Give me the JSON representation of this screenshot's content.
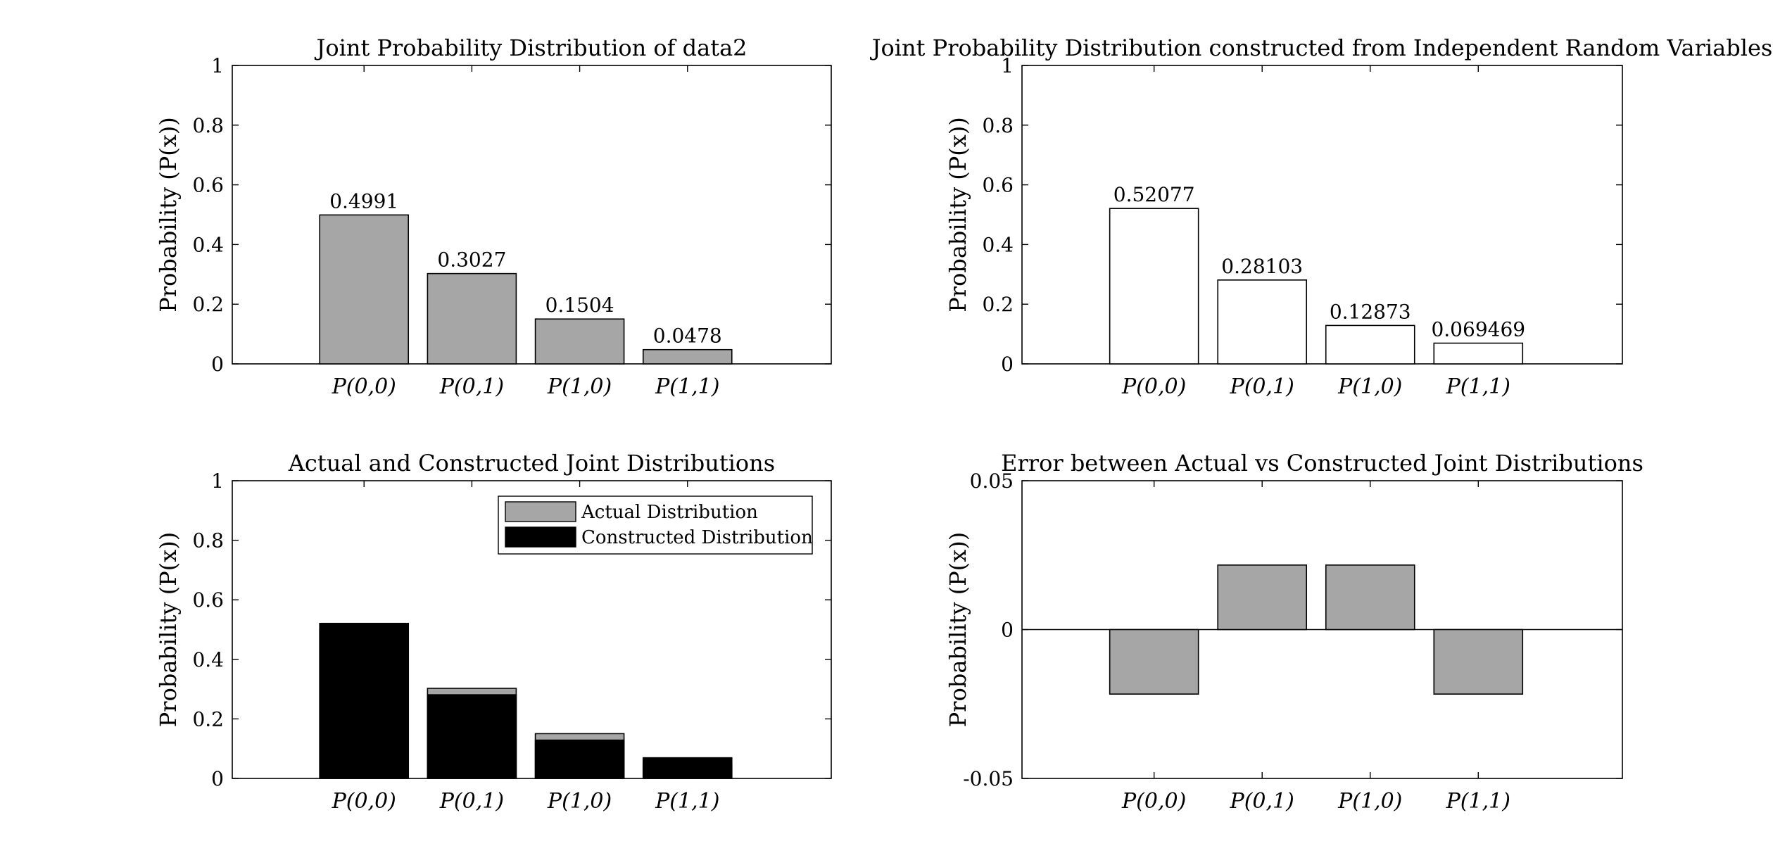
{
  "colors": {
    "bar_gray": "#a6a6a6",
    "bar_black": "#000000",
    "bar_white": "#ffffff",
    "edge": "#000000"
  },
  "chart_data": [
    {
      "type": "bar",
      "title": "Joint Probability Distribution of data2",
      "ylabel": "Probability (P(x))",
      "xlabel": "",
      "categories": [
        "P(0,0)",
        "P(0,1)",
        "P(1,0)",
        "P(1,1)"
      ],
      "values": [
        0.4991,
        0.3027,
        0.1504,
        0.0478
      ],
      "data_labels": [
        "0.4991",
        "0.3027",
        "0.1504",
        "0.0478"
      ],
      "ylim": [
        0,
        1
      ],
      "yticks": [
        0,
        0.2,
        0.4,
        0.6,
        0.8,
        1
      ],
      "ytick_labels": [
        "0",
        "0.2",
        "0.4",
        "0.6",
        "0.8",
        "1"
      ],
      "fill": "gray",
      "grid": false
    },
    {
      "type": "bar",
      "title": "Joint Probability Distribution constructed from Independent Random Variables",
      "ylabel": "Probability (P(x))",
      "xlabel": "",
      "categories": [
        "P(0,0)",
        "P(0,1)",
        "P(1,0)",
        "P(1,1)"
      ],
      "values": [
        0.52077,
        0.28103,
        0.12873,
        0.069469
      ],
      "data_labels": [
        "0.52077",
        "0.28103",
        "0.12873",
        "0.069469"
      ],
      "ylim": [
        0,
        1
      ],
      "yticks": [
        0,
        0.2,
        0.4,
        0.6,
        0.8,
        1
      ],
      "ytick_labels": [
        "0",
        "0.2",
        "0.4",
        "0.6",
        "0.8",
        "1"
      ],
      "fill": "white",
      "grid": false
    },
    {
      "type": "bar",
      "title": "Actual and Constructed Joint Distributions",
      "ylabel": "Probability (P(x))",
      "xlabel": "",
      "categories": [
        "P(0,0)",
        "P(0,1)",
        "P(1,0)",
        "P(1,1)"
      ],
      "series": [
        {
          "name": "Actual Distribution",
          "values": [
            0.4991,
            0.3027,
            0.1504,
            0.0478
          ],
          "color": "gray"
        },
        {
          "name": "Constructed Distribution",
          "values": [
            0.52077,
            0.28103,
            0.12873,
            0.069469
          ],
          "color": "black"
        }
      ],
      "ylim": [
        0,
        1
      ],
      "yticks": [
        0,
        0.2,
        0.4,
        0.6,
        0.8,
        1
      ],
      "ytick_labels": [
        "0",
        "0.2",
        "0.4",
        "0.6",
        "0.8",
        "1"
      ],
      "legend": "top-right",
      "grid": false
    },
    {
      "type": "bar",
      "title": "Error between Actual vs Constructed Joint Distributions",
      "ylabel": "Probability (P(x))",
      "xlabel": "",
      "categories": [
        "P(0,0)",
        "P(0,1)",
        "P(1,0)",
        "P(1,1)"
      ],
      "values": [
        -0.02167,
        0.02167,
        0.02167,
        -0.02167
      ],
      "ylim": [
        -0.05,
        0.05
      ],
      "yticks": [
        -0.05,
        0,
        0.05
      ],
      "ytick_labels": [
        "-0.05",
        "0",
        "0.05"
      ],
      "fill": "gray",
      "zero_line": true,
      "grid": false
    }
  ]
}
